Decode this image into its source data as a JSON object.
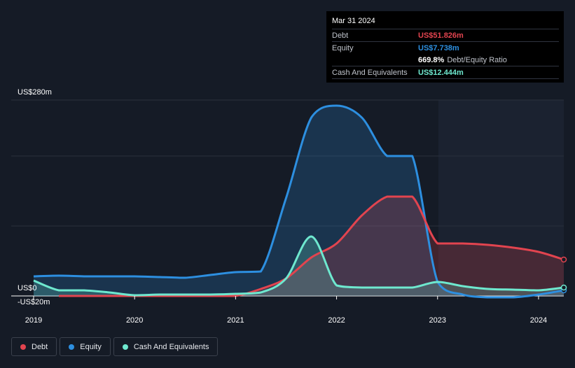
{
  "tooltip": {
    "date": "Mar 31 2024",
    "debt_label": "Debt",
    "debt_value": "US$51.826m",
    "equity_label": "Equity",
    "equity_value": "US$7.738m",
    "ratio_value": "669.8%",
    "ratio_label": "Debt/Equity Ratio",
    "cash_label": "Cash And Equivalents",
    "cash_value": "US$12.444m"
  },
  "colors": {
    "debt": "#e2444f",
    "equity": "#2d8fe0",
    "cash": "#6ee8cf",
    "background": "#151b26"
  },
  "legend": [
    {
      "label": "Debt",
      "color": "#e2444f"
    },
    {
      "label": "Equity",
      "color": "#2d8fe0"
    },
    {
      "label": "Cash And Equivalents",
      "color": "#6ee8cf"
    }
  ],
  "chart_data": {
    "type": "area",
    "ylim": [
      -20,
      280
    ],
    "y_tick_labels": [
      {
        "value": 280,
        "label": "US$280m"
      },
      {
        "value": 0,
        "label": "US$0"
      },
      {
        "value": -20,
        "label": "-US$20m"
      }
    ],
    "gridlines": [
      280,
      200,
      100,
      0
    ],
    "x_ticks": [
      {
        "value": 2019,
        "label": "2019"
      },
      {
        "value": 2020,
        "label": "2020"
      },
      {
        "value": 2021,
        "label": "2021"
      },
      {
        "value": 2022,
        "label": "2022"
      },
      {
        "value": 2023,
        "label": "2023"
      },
      {
        "value": 2024,
        "label": "2024"
      }
    ],
    "xlim": [
      2019,
      2024.25
    ],
    "series": [
      {
        "name": "Debt",
        "key": "debt",
        "points": [
          [
            2019.25,
            0
          ],
          [
            2019.5,
            0
          ],
          [
            2019.75,
            0
          ],
          [
            2020.0,
            0
          ],
          [
            2020.25,
            0
          ],
          [
            2020.5,
            0
          ],
          [
            2020.75,
            0
          ],
          [
            2021.0,
            0
          ],
          [
            2021.25,
            10
          ],
          [
            2021.5,
            25
          ],
          [
            2021.75,
            55
          ],
          [
            2022.0,
            75
          ],
          [
            2022.25,
            115
          ],
          [
            2022.5,
            142
          ],
          [
            2022.75,
            142
          ],
          [
            2023.0,
            75
          ],
          [
            2023.25,
            75
          ],
          [
            2023.5,
            73
          ],
          [
            2023.75,
            69
          ],
          [
            2024.0,
            63
          ],
          [
            2024.25,
            52
          ]
        ]
      },
      {
        "name": "Equity",
        "key": "equity",
        "points": [
          [
            2019.0,
            28
          ],
          [
            2019.25,
            29
          ],
          [
            2019.5,
            28
          ],
          [
            2019.75,
            28
          ],
          [
            2020.0,
            28
          ],
          [
            2020.25,
            27
          ],
          [
            2020.5,
            26
          ],
          [
            2020.75,
            30
          ],
          [
            2021.0,
            34
          ],
          [
            2021.25,
            35
          ],
          [
            2021.5,
            140
          ],
          [
            2021.75,
            255
          ],
          [
            2022.0,
            272
          ],
          [
            2022.25,
            255
          ],
          [
            2022.5,
            200
          ],
          [
            2022.75,
            200
          ],
          [
            2023.0,
            20
          ],
          [
            2023.25,
            2
          ],
          [
            2023.5,
            -2
          ],
          [
            2023.75,
            -2
          ],
          [
            2024.0,
            2
          ],
          [
            2024.25,
            8
          ]
        ]
      },
      {
        "name": "Cash And Equivalents",
        "key": "cash",
        "points": [
          [
            2019.0,
            22
          ],
          [
            2019.25,
            8
          ],
          [
            2019.5,
            8
          ],
          [
            2019.75,
            5
          ],
          [
            2020.0,
            1
          ],
          [
            2020.25,
            2
          ],
          [
            2020.5,
            2
          ],
          [
            2020.75,
            2
          ],
          [
            2021.0,
            3
          ],
          [
            2021.25,
            5
          ],
          [
            2021.5,
            25
          ],
          [
            2021.75,
            85
          ],
          [
            2022.0,
            15
          ],
          [
            2022.25,
            12
          ],
          [
            2022.5,
            12
          ],
          [
            2022.75,
            12
          ],
          [
            2023.0,
            20
          ],
          [
            2023.25,
            14
          ],
          [
            2023.5,
            10
          ],
          [
            2023.75,
            9
          ],
          [
            2024.0,
            8
          ],
          [
            2024.25,
            12
          ]
        ]
      }
    ]
  }
}
